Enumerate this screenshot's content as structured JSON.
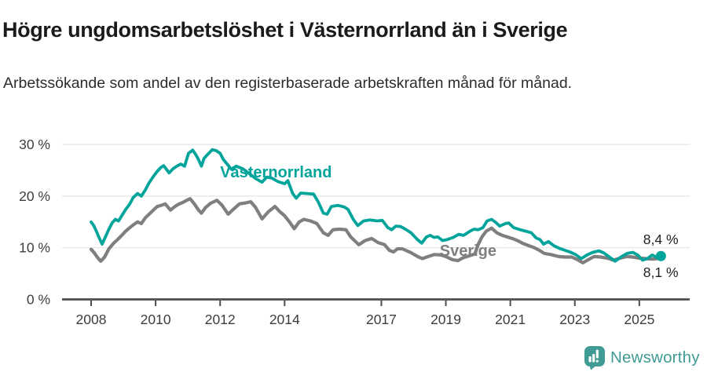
{
  "header": {
    "title": "Högre ungdomsarbetslöshet i Västernorrland än i Sverige",
    "subtitle": "Arbetssökande som andel av den registerbaserade arbetskraften månad för månad."
  },
  "footer": {
    "brand": "Newsworthy",
    "brand_color": "#3f9b93",
    "logo_icon": "bar-chart-speech-bubble-icon"
  },
  "chart_data": {
    "type": "line",
    "unit": "%",
    "ylim": [
      0,
      30
    ],
    "yticks": [
      0,
      10,
      20,
      30
    ],
    "ytick_format": "{v} %",
    "xticks": [
      2008,
      2010,
      2012,
      2014,
      2017,
      2019,
      2021,
      2023,
      2025
    ],
    "xlim": [
      2007.1,
      2026.5
    ],
    "grid": true,
    "axis_color": "#4d4d4d",
    "grid_color": "#e4e4e4",
    "tick_label_color": "#3d3d3d",
    "annotation_color": "#222222",
    "series": [
      {
        "name": "Sverige",
        "color": "#7f7f7f",
        "stroke_width": 4.2,
        "marker_end": false,
        "label_pos": {
          "t": 2018.81,
          "v": 8.4
        },
        "last_value_label": "8,1 %",
        "points": [
          [
            2008.0,
            9.7
          ],
          [
            2008.1,
            9.0
          ],
          [
            2008.2,
            8.1
          ],
          [
            2008.3,
            7.4
          ],
          [
            2008.42,
            8.2
          ],
          [
            2008.55,
            9.8
          ],
          [
            2008.7,
            10.9
          ],
          [
            2008.84,
            11.7
          ],
          [
            2008.95,
            12.4
          ],
          [
            2009.07,
            13.2
          ],
          [
            2009.2,
            13.9
          ],
          [
            2009.3,
            14.4
          ],
          [
            2009.44,
            15.0
          ],
          [
            2009.56,
            14.7
          ],
          [
            2009.68,
            15.8
          ],
          [
            2009.8,
            16.5
          ],
          [
            2009.93,
            17.3
          ],
          [
            2010.05,
            18.0
          ],
          [
            2010.17,
            18.2
          ],
          [
            2010.3,
            18.5
          ],
          [
            2010.46,
            17.3
          ],
          [
            2010.6,
            18.0
          ],
          [
            2010.73,
            18.5
          ],
          [
            2010.85,
            18.8
          ],
          [
            2011.0,
            19.3
          ],
          [
            2011.07,
            19.5
          ],
          [
            2011.2,
            18.5
          ],
          [
            2011.33,
            17.3
          ],
          [
            2011.42,
            16.7
          ],
          [
            2011.55,
            17.8
          ],
          [
            2011.7,
            18.6
          ],
          [
            2011.9,
            19.2
          ],
          [
            2012.05,
            18.3
          ],
          [
            2012.25,
            16.5
          ],
          [
            2012.42,
            17.5
          ],
          [
            2012.6,
            18.5
          ],
          [
            2012.8,
            18.7
          ],
          [
            2012.95,
            18.9
          ],
          [
            2013.1,
            17.8
          ],
          [
            2013.3,
            15.6
          ],
          [
            2013.5,
            17.0
          ],
          [
            2013.7,
            18.0
          ],
          [
            2013.85,
            17.0
          ],
          [
            2014.0,
            16.2
          ],
          [
            2014.15,
            15.0
          ],
          [
            2014.3,
            13.7
          ],
          [
            2014.45,
            15.0
          ],
          [
            2014.6,
            15.5
          ],
          [
            2014.8,
            15.2
          ],
          [
            2015.0,
            14.7
          ],
          [
            2015.2,
            12.9
          ],
          [
            2015.35,
            12.4
          ],
          [
            2015.5,
            13.5
          ],
          [
            2015.7,
            13.6
          ],
          [
            2015.9,
            13.5
          ],
          [
            2016.05,
            12.1
          ],
          [
            2016.3,
            10.6
          ],
          [
            2016.5,
            11.4
          ],
          [
            2016.7,
            11.8
          ],
          [
            2016.9,
            11.0
          ],
          [
            2017.1,
            10.6
          ],
          [
            2017.25,
            9.5
          ],
          [
            2017.38,
            9.2
          ],
          [
            2017.5,
            9.8
          ],
          [
            2017.65,
            9.8
          ],
          [
            2017.9,
            9.1
          ],
          [
            2018.13,
            8.3
          ],
          [
            2018.27,
            7.9
          ],
          [
            2018.45,
            8.3
          ],
          [
            2018.65,
            8.7
          ],
          [
            2018.85,
            8.6
          ],
          [
            2019.0,
            8.3
          ],
          [
            2019.2,
            7.7
          ],
          [
            2019.37,
            7.5
          ],
          [
            2019.55,
            8.1
          ],
          [
            2019.75,
            8.5
          ],
          [
            2019.9,
            8.8
          ],
          [
            2020.0,
            10.6
          ],
          [
            2020.12,
            12.1
          ],
          [
            2020.25,
            13.2
          ],
          [
            2020.42,
            13.8
          ],
          [
            2020.58,
            12.9
          ],
          [
            2020.75,
            12.4
          ],
          [
            2020.95,
            12.0
          ],
          [
            2021.1,
            11.7
          ],
          [
            2021.25,
            11.3
          ],
          [
            2021.4,
            10.8
          ],
          [
            2021.58,
            10.4
          ],
          [
            2021.75,
            10.0
          ],
          [
            2021.9,
            9.5
          ],
          [
            2022.05,
            8.9
          ],
          [
            2022.25,
            8.7
          ],
          [
            2022.5,
            8.3
          ],
          [
            2022.7,
            8.2
          ],
          [
            2022.9,
            8.2
          ],
          [
            2023.05,
            7.8
          ],
          [
            2023.25,
            7.1
          ],
          [
            2023.45,
            7.8
          ],
          [
            2023.6,
            8.3
          ],
          [
            2023.8,
            8.2
          ],
          [
            2024.0,
            8.0
          ],
          [
            2024.2,
            7.6
          ],
          [
            2024.4,
            8.0
          ],
          [
            2024.6,
            8.3
          ],
          [
            2024.8,
            8.2
          ],
          [
            2025.0,
            8.0
          ],
          [
            2025.2,
            7.9
          ],
          [
            2025.4,
            7.8
          ],
          [
            2025.55,
            7.9
          ],
          [
            2025.67,
            8.1
          ]
        ]
      },
      {
        "name": "Västernorrland",
        "color": "#00a49b",
        "stroke_width": 3.8,
        "marker_end": true,
        "label_pos": {
          "t": 2012.0,
          "v": 23.6
        },
        "last_value_label": "8,4 %",
        "points": [
          [
            2008.0,
            15.0
          ],
          [
            2008.08,
            14.3
          ],
          [
            2008.17,
            13.1
          ],
          [
            2008.25,
            11.9
          ],
          [
            2008.34,
            10.7
          ],
          [
            2008.45,
            12.2
          ],
          [
            2008.55,
            13.6
          ],
          [
            2008.65,
            14.8
          ],
          [
            2008.75,
            15.5
          ],
          [
            2008.85,
            15.2
          ],
          [
            2008.95,
            16.2
          ],
          [
            2009.07,
            17.4
          ],
          [
            2009.2,
            18.5
          ],
          [
            2009.3,
            19.7
          ],
          [
            2009.44,
            20.5
          ],
          [
            2009.56,
            20.0
          ],
          [
            2009.68,
            21.2
          ],
          [
            2009.8,
            22.6
          ],
          [
            2009.93,
            23.8
          ],
          [
            2010.05,
            24.8
          ],
          [
            2010.17,
            25.6
          ],
          [
            2010.25,
            25.9
          ],
          [
            2010.42,
            24.5
          ],
          [
            2010.54,
            25.3
          ],
          [
            2010.66,
            25.8
          ],
          [
            2010.78,
            26.2
          ],
          [
            2010.9,
            25.8
          ],
          [
            2011.02,
            28.3
          ],
          [
            2011.15,
            28.9
          ],
          [
            2011.25,
            28.0
          ],
          [
            2011.33,
            27.1
          ],
          [
            2011.42,
            25.8
          ],
          [
            2011.5,
            27.3
          ],
          [
            2011.6,
            28.0
          ],
          [
            2011.76,
            29.0
          ],
          [
            2011.88,
            28.8
          ],
          [
            2012.0,
            28.3
          ],
          [
            2012.1,
            27.1
          ],
          [
            2012.22,
            26.2
          ],
          [
            2012.35,
            25.2
          ],
          [
            2012.5,
            25.8
          ],
          [
            2012.7,
            25.3
          ],
          [
            2012.9,
            24.4
          ],
          [
            2013.1,
            23.4
          ],
          [
            2013.3,
            22.7
          ],
          [
            2013.45,
            23.7
          ],
          [
            2013.6,
            23.5
          ],
          [
            2013.8,
            22.8
          ],
          [
            2014.0,
            22.4
          ],
          [
            2014.1,
            23.0
          ],
          [
            2014.25,
            20.5
          ],
          [
            2014.36,
            19.6
          ],
          [
            2014.5,
            20.6
          ],
          [
            2014.7,
            20.5
          ],
          [
            2014.9,
            20.4
          ],
          [
            2015.05,
            18.8
          ],
          [
            2015.2,
            16.7
          ],
          [
            2015.32,
            16.5
          ],
          [
            2015.45,
            18.0
          ],
          [
            2015.65,
            18.2
          ],
          [
            2015.85,
            17.9
          ],
          [
            2015.97,
            17.4
          ],
          [
            2016.13,
            15.5
          ],
          [
            2016.27,
            14.3
          ],
          [
            2016.45,
            15.2
          ],
          [
            2016.65,
            15.4
          ],
          [
            2016.87,
            15.2
          ],
          [
            2017.03,
            15.3
          ],
          [
            2017.2,
            13.9
          ],
          [
            2017.32,
            13.5
          ],
          [
            2017.45,
            14.2
          ],
          [
            2017.6,
            14.1
          ],
          [
            2017.77,
            13.5
          ],
          [
            2017.92,
            12.9
          ],
          [
            2018.1,
            11.7
          ],
          [
            2018.25,
            10.9
          ],
          [
            2018.4,
            12.1
          ],
          [
            2018.52,
            12.4
          ],
          [
            2018.63,
            12.0
          ],
          [
            2018.75,
            12.1
          ],
          [
            2018.9,
            11.4
          ],
          [
            2019.05,
            11.6
          ],
          [
            2019.23,
            12.0
          ],
          [
            2019.4,
            12.6
          ],
          [
            2019.55,
            12.4
          ],
          [
            2019.75,
            13.2
          ],
          [
            2019.87,
            13.6
          ],
          [
            2020.0,
            13.5
          ],
          [
            2020.15,
            13.9
          ],
          [
            2020.28,
            15.2
          ],
          [
            2020.42,
            15.5
          ],
          [
            2020.55,
            14.9
          ],
          [
            2020.67,
            14.2
          ],
          [
            2020.85,
            14.7
          ],
          [
            2020.95,
            14.8
          ],
          [
            2021.1,
            13.9
          ],
          [
            2021.3,
            13.5
          ],
          [
            2021.48,
            13.2
          ],
          [
            2021.65,
            12.9
          ],
          [
            2021.8,
            11.9
          ],
          [
            2021.92,
            11.6
          ],
          [
            2022.03,
            10.7
          ],
          [
            2022.18,
            11.2
          ],
          [
            2022.35,
            10.4
          ],
          [
            2022.52,
            9.9
          ],
          [
            2022.7,
            9.5
          ],
          [
            2022.88,
            9.1
          ],
          [
            2023.02,
            8.7
          ],
          [
            2023.2,
            7.9
          ],
          [
            2023.38,
            8.6
          ],
          [
            2023.55,
            9.1
          ],
          [
            2023.75,
            9.4
          ],
          [
            2023.9,
            9.0
          ],
          [
            2024.05,
            8.3
          ],
          [
            2024.25,
            7.4
          ],
          [
            2024.45,
            8.3
          ],
          [
            2024.62,
            8.9
          ],
          [
            2024.8,
            9.1
          ],
          [
            2024.95,
            8.6
          ],
          [
            2025.1,
            7.6
          ],
          [
            2025.25,
            7.9
          ],
          [
            2025.4,
            8.6
          ],
          [
            2025.55,
            8.1
          ],
          [
            2025.67,
            8.4
          ]
        ]
      }
    ],
    "annotations": [
      {
        "text": "8,4 %",
        "t": 2025.12,
        "v": 10.7
      },
      {
        "text": "8,1 %",
        "t": 2025.12,
        "v": 4.3
      }
    ]
  }
}
